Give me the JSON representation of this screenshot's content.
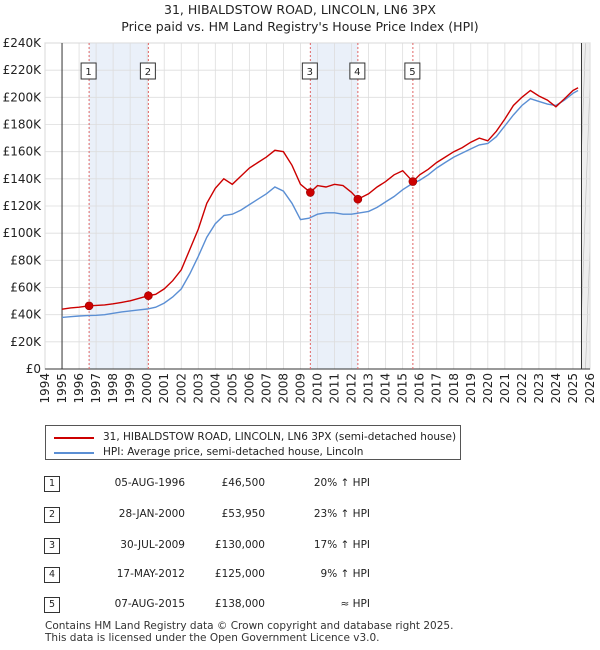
{
  "chart_data": {
    "type": "line",
    "title": "31, HIBALDSTOW ROAD, LINCOLN, LN6 3PX",
    "subtitle": "Price paid vs. HM Land Registry's House Price Index (HPI)",
    "xlabel": "",
    "ylabel": "",
    "xlim": [
      1994,
      2026
    ],
    "ylim": [
      0,
      240000
    ],
    "x_ticks": [
      "1994",
      "1995",
      "1996",
      "1997",
      "1998",
      "1999",
      "2000",
      "2001",
      "2002",
      "2003",
      "2004",
      "2005",
      "2006",
      "2007",
      "2008",
      "2009",
      "2010",
      "2011",
      "2012",
      "2013",
      "2014",
      "2015",
      "2016",
      "2017",
      "2018",
      "2019",
      "2020",
      "2021",
      "2022",
      "2023",
      "2024",
      "2025",
      "2026"
    ],
    "y_ticks": [
      "£0",
      "£20K",
      "£40K",
      "£60K",
      "£80K",
      "£100K",
      "£120K",
      "£140K",
      "£160K",
      "£180K",
      "£200K",
      "£220K",
      "£240K"
    ],
    "series": [
      {
        "name": "31, HIBALDSTOW ROAD, LINCOLN, LN6 3PX (semi-detached house)",
        "color": "#cc0000",
        "points": [
          [
            1995.0,
            44000
          ],
          [
            1995.5,
            45000
          ],
          [
            1996.0,
            45500
          ],
          [
            1996.59,
            46500
          ],
          [
            1997.0,
            46800
          ],
          [
            1997.5,
            47200
          ],
          [
            1998.0,
            48000
          ],
          [
            1998.5,
            49000
          ],
          [
            1999.0,
            50200
          ],
          [
            1999.5,
            52000
          ],
          [
            2000.07,
            53950
          ],
          [
            2000.5,
            55000
          ],
          [
            2001.0,
            59000
          ],
          [
            2001.5,
            65000
          ],
          [
            2002.0,
            73000
          ],
          [
            2002.5,
            88000
          ],
          [
            2003.0,
            103000
          ],
          [
            2003.5,
            122000
          ],
          [
            2004.0,
            133000
          ],
          [
            2004.5,
            140000
          ],
          [
            2005.0,
            136000
          ],
          [
            2005.5,
            142000
          ],
          [
            2006.0,
            148000
          ],
          [
            2006.5,
            152000
          ],
          [
            2007.0,
            156000
          ],
          [
            2007.5,
            161000
          ],
          [
            2008.0,
            160000
          ],
          [
            2008.5,
            150000
          ],
          [
            2009.0,
            136000
          ],
          [
            2009.58,
            130000
          ],
          [
            2010.0,
            135000
          ],
          [
            2010.5,
            134000
          ],
          [
            2011.0,
            136000
          ],
          [
            2011.5,
            135000
          ],
          [
            2012.0,
            130000
          ],
          [
            2012.37,
            125000
          ],
          [
            2013.0,
            129000
          ],
          [
            2013.5,
            134000
          ],
          [
            2014.0,
            138000
          ],
          [
            2014.5,
            143000
          ],
          [
            2015.0,
            146000
          ],
          [
            2015.6,
            138000
          ],
          [
            2016.0,
            143000
          ],
          [
            2016.5,
            147000
          ],
          [
            2017.0,
            152000
          ],
          [
            2017.5,
            156000
          ],
          [
            2018.0,
            160000
          ],
          [
            2018.5,
            163000
          ],
          [
            2019.0,
            167000
          ],
          [
            2019.5,
            170000
          ],
          [
            2020.0,
            168000
          ],
          [
            2020.5,
            175000
          ],
          [
            2021.0,
            184000
          ],
          [
            2021.5,
            194000
          ],
          [
            2022.0,
            200000
          ],
          [
            2022.5,
            205000
          ],
          [
            2023.0,
            201000
          ],
          [
            2023.5,
            198000
          ],
          [
            2024.0,
            193000
          ],
          [
            2024.5,
            199000
          ],
          [
            2025.0,
            205000
          ],
          [
            2025.3,
            207000
          ]
        ]
      },
      {
        "name": "HPI: Average price, semi-detached house, Lincoln",
        "color": "#5b8fd4",
        "points": [
          [
            1995.0,
            38000
          ],
          [
            1995.5,
            38500
          ],
          [
            1996.0,
            39000
          ],
          [
            1996.5,
            39300
          ],
          [
            1997.0,
            39500
          ],
          [
            1997.5,
            40000
          ],
          [
            1998.0,
            41000
          ],
          [
            1998.5,
            42000
          ],
          [
            1999.0,
            42800
          ],
          [
            1999.5,
            43500
          ],
          [
            2000.0,
            44200
          ],
          [
            2000.5,
            45500
          ],
          [
            2001.0,
            48500
          ],
          [
            2001.5,
            53000
          ],
          [
            2002.0,
            59000
          ],
          [
            2002.5,
            70000
          ],
          [
            2003.0,
            83000
          ],
          [
            2003.5,
            97000
          ],
          [
            2004.0,
            107000
          ],
          [
            2004.5,
            113000
          ],
          [
            2005.0,
            114000
          ],
          [
            2005.5,
            117000
          ],
          [
            2006.0,
            121000
          ],
          [
            2006.5,
            125000
          ],
          [
            2007.0,
            129000
          ],
          [
            2007.5,
            134000
          ],
          [
            2008.0,
            131000
          ],
          [
            2008.5,
            122000
          ],
          [
            2009.0,
            110000
          ],
          [
            2009.5,
            111000
          ],
          [
            2010.0,
            114000
          ],
          [
            2010.5,
            115000
          ],
          [
            2011.0,
            115000
          ],
          [
            2011.5,
            114000
          ],
          [
            2012.0,
            114000
          ],
          [
            2012.5,
            115000
          ],
          [
            2013.0,
            116000
          ],
          [
            2013.5,
            119000
          ],
          [
            2014.0,
            123000
          ],
          [
            2014.5,
            127000
          ],
          [
            2015.0,
            132000
          ],
          [
            2015.5,
            136000
          ],
          [
            2016.0,
            139000
          ],
          [
            2016.5,
            143000
          ],
          [
            2017.0,
            148000
          ],
          [
            2017.5,
            152000
          ],
          [
            2018.0,
            156000
          ],
          [
            2018.5,
            159000
          ],
          [
            2019.0,
            162000
          ],
          [
            2019.5,
            165000
          ],
          [
            2020.0,
            166000
          ],
          [
            2020.5,
            171000
          ],
          [
            2021.0,
            179000
          ],
          [
            2021.5,
            187000
          ],
          [
            2022.0,
            194000
          ],
          [
            2022.5,
            199000
          ],
          [
            2023.0,
            197000
          ],
          [
            2023.5,
            195000
          ],
          [
            2024.0,
            194000
          ],
          [
            2024.5,
            198000
          ],
          [
            2025.0,
            203000
          ],
          [
            2025.3,
            205000
          ]
        ]
      }
    ],
    "sales": [
      {
        "num": "1",
        "date": "05-AUG-1996",
        "price": "£46,500",
        "hpi": "20% ↑ HPI",
        "x": 1996.59,
        "y": 46500
      },
      {
        "num": "2",
        "date": "28-JAN-2000",
        "price": "£53,950",
        "hpi": "23% ↑ HPI",
        "x": 2000.07,
        "y": 53950
      },
      {
        "num": "3",
        "date": "30-JUL-2009",
        "price": "£130,000",
        "hpi": "17% ↑ HPI",
        "x": 2009.58,
        "y": 130000
      },
      {
        "num": "4",
        "date": "17-MAY-2012",
        "price": "£125,000",
        "hpi": "9% ↑ HPI",
        "x": 2012.37,
        "y": 125000
      },
      {
        "num": "5",
        "date": "07-AUG-2015",
        "price": "£138,000",
        "hpi": "≈ HPI",
        "x": 2015.6,
        "y": 138000
      }
    ],
    "legend_position": "below-chart",
    "grid": true
  },
  "footer": {
    "line1": "Contains HM Land Registry data © Crown copyright and database right 2025.",
    "line2": "This data is licensed under the Open Government Licence v3.0."
  }
}
